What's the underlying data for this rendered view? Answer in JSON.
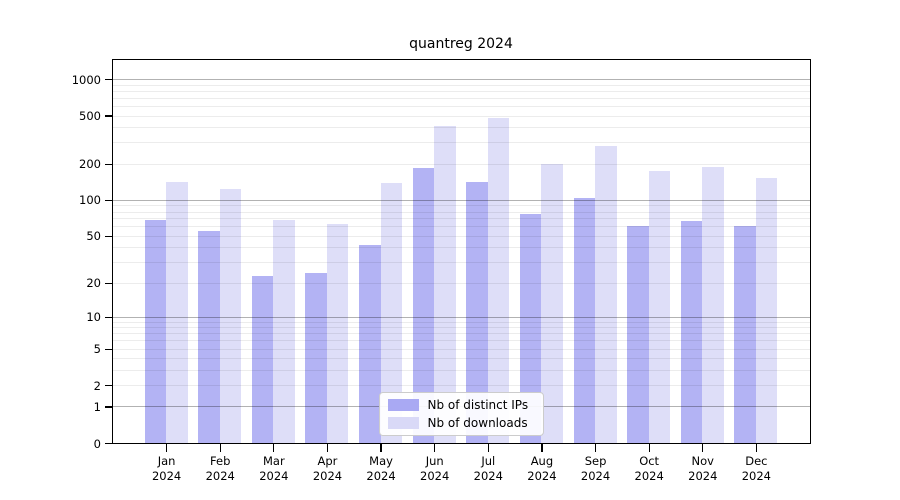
{
  "chart_data": {
    "type": "bar",
    "title": "quantreg 2024",
    "x": {
      "months": [
        "Jan",
        "Feb",
        "Mar",
        "Apr",
        "May",
        "Jun",
        "Jul",
        "Aug",
        "Sep",
        "Oct",
        "Nov",
        "Dec"
      ],
      "year": "2024"
    },
    "series": [
      {
        "name": "Nb of distinct IPs",
        "color": "#a9a9f3",
        "values": [
          68,
          55,
          23,
          24,
          42,
          185,
          140,
          76,
          104,
          60,
          67,
          60
        ]
      },
      {
        "name": "Nb of downloads",
        "color": "#d9d9f7",
        "values": [
          140,
          123,
          68,
          63,
          139,
          410,
          475,
          200,
          280,
          174,
          187,
          152
        ]
      }
    ],
    "y_axis": {
      "scale": "log1p",
      "tick_values": [
        0,
        1,
        2,
        5,
        10,
        20,
        50,
        100,
        200,
        500,
        1000
      ],
      "max_value": 1450
    },
    "grid": {
      "on": true,
      "major_line_values": [
        1,
        10,
        100,
        1000
      ],
      "minor_multiples_per_decade": [
        2,
        3,
        4,
        5,
        6,
        7,
        8,
        9
      ],
      "major_color": "rgba(0,0,0,0.30)",
      "minor_color": "rgba(0,0,0,0.075)"
    },
    "legend": {
      "position": "inside-bottom-center"
    },
    "colors": {
      "frame": "#000000",
      "background": "#ffffff"
    },
    "bar_opacity": 0.88
  }
}
